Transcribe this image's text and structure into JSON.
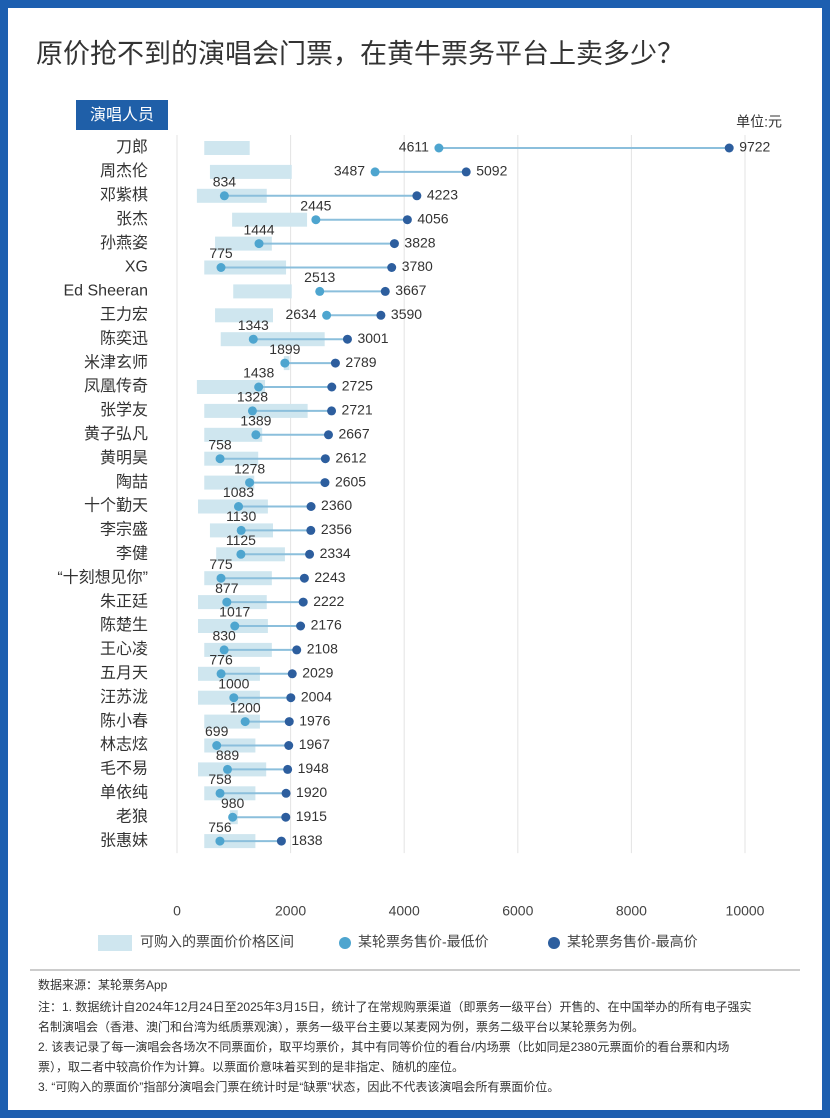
{
  "chart_data": {
    "type": "dumbbell",
    "title": "原价抢不到的演唱会门票，在黄牛票务平台上卖多少？",
    "y_axis_label": "演唱人员",
    "unit": "单位:元",
    "categories": [
      "刀郎",
      "周杰伦",
      "邓紫棋",
      "张杰",
      "孙燕姿",
      "XG",
      "Ed Sheeran",
      "王力宏",
      "陈奕迅",
      "米津玄师",
      "凤凰传奇",
      "张学友",
      "黄子弘凡",
      "黄明昊",
      "陶喆",
      "十个勤天",
      "李宗盛",
      "李健",
      "“十刻想见你”",
      "朱正廷",
      "陈楚生",
      "王心凌",
      "五月天",
      "汪苏泷",
      "陈小春",
      "林志炫",
      "毛不易",
      "单依纯",
      "老狼",
      "张惠妹"
    ],
    "series": [
      {
        "name": "可购入的票面价价格区间",
        "color": "#cfe6ef",
        "values": [
          [
            480,
            1280
          ],
          [
            580,
            2020
          ],
          [
            350,
            1580
          ],
          [
            970,
            2290
          ],
          [
            670,
            1670
          ],
          [
            480,
            1920
          ],
          [
            990,
            2020
          ],
          [
            670,
            1690
          ],
          [
            770,
            2600
          ],
          [
            1880,
            1980
          ],
          [
            350,
            1550
          ],
          [
            480,
            2300
          ],
          [
            480,
            1500
          ],
          [
            480,
            1430
          ],
          [
            480,
            1360
          ],
          [
            370,
            1600
          ],
          [
            580,
            1690
          ],
          [
            690,
            1900
          ],
          [
            480,
            1670
          ],
          [
            370,
            1580
          ],
          [
            370,
            1600
          ],
          [
            480,
            1670
          ],
          [
            370,
            1460
          ],
          [
            370,
            1460
          ],
          [
            480,
            1460
          ],
          [
            480,
            1380
          ],
          [
            370,
            1570
          ],
          [
            480,
            1380
          ],
          [
            930,
            1070
          ],
          [
            480,
            1380
          ]
        ]
      },
      {
        "name": "某轮票务售价-最低价",
        "color": "#4ea5cf",
        "values": [
          4611,
          3487,
          834,
          2445,
          1444,
          775,
          2513,
          2634,
          1343,
          1899,
          1438,
          1328,
          1389,
          758,
          1278,
          1083,
          1130,
          1125,
          775,
          877,
          1017,
          830,
          776,
          1000,
          1200,
          699,
          889,
          758,
          980,
          756
        ]
      },
      {
        "name": "某轮票务售价-最高价",
        "color": "#2d5e9e",
        "values": [
          9722,
          5092,
          4223,
          4056,
          3828,
          3780,
          3667,
          3590,
          3001,
          2789,
          2725,
          2721,
          2667,
          2612,
          2605,
          2360,
          2356,
          2334,
          2243,
          2222,
          2176,
          2108,
          2029,
          2004,
          1976,
          1967,
          1948,
          1920,
          1915,
          1838
        ]
      }
    ],
    "xlim": [
      0,
      10000
    ],
    "xticks": [
      0,
      2000,
      4000,
      6000,
      8000,
      10000
    ],
    "grid": true
  },
  "source": "数据来源：某轮票务App",
  "notes": [
    "注：1. 数据统计自2024年12月24日至2025年3月15日，统计了在常规购票渠道（即票务一级平台）开售的、在中国举办的所有电子强实",
    "名制演唱会（香港、澳门和台湾为纸质票观演），票务一级平台主要以某麦网为例，票务二级平台以某轮票务为例。",
    "2. 该表记录了每一演唱会各场次不同票面价，取平均票价，其中有同等价位的看台/内场票（比如同是2380元票面价的看台票和内场",
    "票），取二者中较高价作为计算。以票面价意味着买到的是非指定、随机的座位。",
    "3. “可购入的票面价”指部分演唱会门票在统计时是“缺票”状态，因此不代表该演唱会所有票面价位。"
  ]
}
